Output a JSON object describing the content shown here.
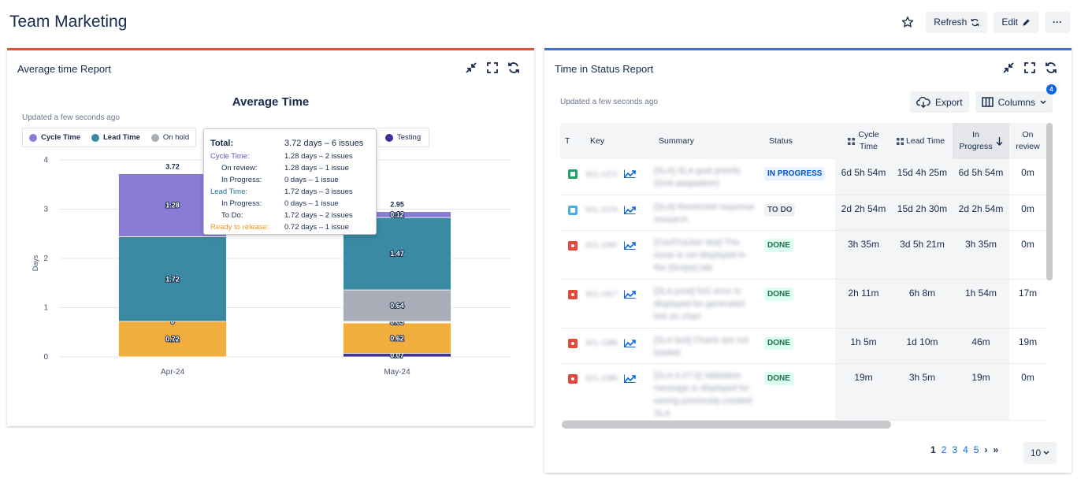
{
  "page": {
    "title": "Team Marketing"
  },
  "toolbar": {
    "refresh_label": "Refresh",
    "edit_label": "Edit",
    "more_label": "···"
  },
  "left_panel": {
    "title": "Average time Report",
    "updated": "Updated a few seconds ago",
    "chart_title": "Average Time",
    "legend": [
      {
        "label": "Cycle Time",
        "color": "#8a7bd4"
      },
      {
        "label": "Lead Time",
        "color": "#3a8aa3"
      },
      {
        "label": "On hold",
        "color": "#a9adb8"
      },
      {
        "label": "Testing",
        "color": "#3f2e98"
      }
    ],
    "tooltip": {
      "total_label": "Total:",
      "total_value": "3.72 days – 6 issues",
      "rows": [
        {
          "label": "Cycle Time:",
          "value": "1.28 days – 2 issues",
          "color": "#6554c0",
          "indent": false
        },
        {
          "label": "On review:",
          "value": "1.28 days – 1 issue",
          "color": "#172b4d",
          "indent": true
        },
        {
          "label": "In Progress:",
          "value": "0 days – 1 issue",
          "color": "#172b4d",
          "indent": true
        },
        {
          "label": "Lead Time:",
          "value": "1.72 days – 3 issues",
          "color": "#1f6f8b",
          "indent": false
        },
        {
          "label": "In Progress:",
          "value": "0 days – 1 issue",
          "color": "#172b4d",
          "indent": true
        },
        {
          "label": "To Do:",
          "value": "1.72 days – 2 issues",
          "color": "#172b4d",
          "indent": true
        },
        {
          "label": "Ready to release:",
          "value": "0.72 days – 1 issue",
          "color": "#e89a1c",
          "indent": false
        }
      ]
    }
  },
  "chart_data": {
    "type": "bar",
    "stacked": true,
    "title": "Average Time",
    "xlabel": "",
    "ylabel": "Days",
    "ylim": [
      0,
      4
    ],
    "yticks": [
      "0",
      "1",
      "2",
      "3",
      "4"
    ],
    "categories": [
      "Apr-24",
      "May-24"
    ],
    "totals": [
      "3.72",
      "2.95"
    ],
    "grid": true,
    "legend_position": "top-left",
    "series": [
      {
        "name": "Testing",
        "color": "#3f2e98",
        "values": [
          0,
          0.07
        ],
        "labels": [
          "",
          "0.07"
        ]
      },
      {
        "name": "Ready to release",
        "color": "#f2ae3d",
        "values": [
          0.72,
          0.62
        ],
        "labels": [
          "0.72",
          "0.62"
        ]
      },
      {
        "name": "",
        "color": "#ffffff",
        "values": [
          0,
          0.03
        ],
        "labels": [
          "0",
          "0.03"
        ]
      },
      {
        "name": "On hold",
        "color": "#a9adb8",
        "values": [
          0,
          0.64
        ],
        "labels": [
          "",
          "0.64"
        ]
      },
      {
        "name": "Lead Time",
        "color": "#3a8aa3",
        "values": [
          1.72,
          1.47
        ],
        "labels": [
          "1.72",
          "1.47"
        ]
      },
      {
        "name": "Cycle Time",
        "color": "#8a7bd4",
        "values": [
          1.28,
          0.12
        ],
        "labels": [
          "1.28",
          "0.12"
        ]
      }
    ]
  },
  "right_panel": {
    "title": "Time in Status Report",
    "updated": "Updated a few seconds ago",
    "export_label": "Export",
    "columns_label": "Columns",
    "columns_badge": "4",
    "headers": {
      "t": "T",
      "key": "Key",
      "summary": "Summary",
      "status": "Status",
      "cycle_a": "Cycle",
      "cycle_b": "Time",
      "lead": "Lead Time",
      "inprog_a": "In",
      "inprog_b": "Progress",
      "onrev_a": "On",
      "onrev_b": "review"
    },
    "rows": [
      {
        "type": "story",
        "type_color": "#22a06b",
        "key": "SCL-1372",
        "summary": "[SLA] SLA goal priority (Grid adaptation)",
        "status": "IN PROGRESS",
        "status_kind": "progress",
        "cycle": "6d 5h 54m",
        "lead": "15d 4h 25m",
        "inprog": "6d 5h 54m",
        "onrev": "0m"
      },
      {
        "type": "task",
        "type_color": "#4bade8",
        "key": "SCL-1374",
        "summary": "[SLA] Restricted response research",
        "status": "TO DO",
        "status_kind": "todo",
        "cycle": "2d 2h 54m",
        "lead": "15d 2h 30m",
        "inprog": "2d 2h 54m",
        "onrev": "0m"
      },
      {
        "type": "bug",
        "type_color": "#e5493a",
        "key": "SCL-1390",
        "summary": "[CoolTracker test] The issue is not displayed in the [Scope] tab",
        "status": "DONE",
        "status_kind": "done",
        "cycle": "3h 35m",
        "lead": "3d 5h 21m",
        "inprog": "3h 35m",
        "onrev": "0m"
      },
      {
        "type": "bug",
        "type_color": "#e5493a",
        "key": "SCL-1417",
        "summary": "[SLA prod] 502 error is displayed for generated link on chart",
        "status": "DONE",
        "status_kind": "done",
        "cycle": "2h 11m",
        "lead": "6h 8m",
        "inprog": "1h 54m",
        "onrev": "17m"
      },
      {
        "type": "bug",
        "type_color": "#e5493a",
        "key": "SCL-1388",
        "summary": "[SLA test] Charts are not loaded",
        "status": "DONE",
        "status_kind": "done",
        "cycle": "1h 5m",
        "lead": "1d 10m",
        "inprog": "46m",
        "onrev": "19m"
      },
      {
        "type": "bug",
        "type_color": "#e5493a",
        "key": "SCL-1389",
        "summary": "[SLA 4.27.0] Validation message is displayed for saving previously created SLA",
        "status": "DONE",
        "status_kind": "done",
        "cycle": "19m",
        "lead": "3h 5m",
        "inprog": "19m",
        "onrev": "0m"
      }
    ],
    "pagination": {
      "pages": [
        "1",
        "2",
        "3",
        "4",
        "5"
      ],
      "next": "›",
      "last": "»",
      "page_size": "10"
    }
  }
}
